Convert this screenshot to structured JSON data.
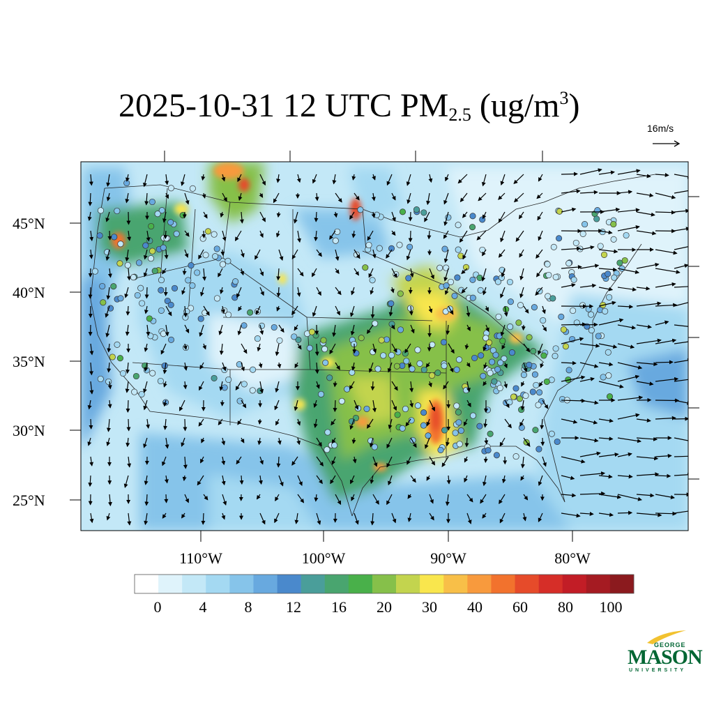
{
  "title": {
    "prefix": "2025-10-31 12 UTC PM",
    "subscript": "2.5",
    "units_open": " (ug/m",
    "units_power": "3",
    "units_close": ")"
  },
  "wind_reference": {
    "label": "16m/s"
  },
  "map": {
    "lat_labels": [
      "45°N",
      "40°N",
      "35°N",
      "30°N",
      "25°N"
    ],
    "lon_labels": [
      "110°W",
      "100°W",
      "90°W",
      "80°W"
    ]
  },
  "colorbar": {
    "colors": [
      "#ffffff",
      "#dff3fb",
      "#c3e8f7",
      "#a4d9f2",
      "#86c4ea",
      "#68a9df",
      "#4a89cc",
      "#4a9e9a",
      "#49a56f",
      "#49b04a",
      "#86c04a",
      "#c3d44e",
      "#f9e64d",
      "#f8bf48",
      "#f89a3d",
      "#f2722d",
      "#e64b2a",
      "#d62e28",
      "#c21d26",
      "#a51b22",
      "#8b1a1e"
    ],
    "labels": [
      "0",
      "4",
      "8",
      "12",
      "16",
      "20",
      "30",
      "40",
      "60",
      "80",
      "100"
    ]
  },
  "logo": {
    "top": "GEORGE",
    "main": "MASON",
    "bottom": "UNIVERSITY",
    "color": "#006633"
  }
}
